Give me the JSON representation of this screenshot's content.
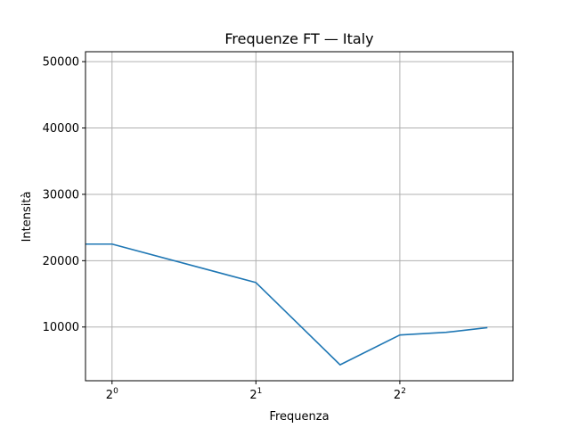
{
  "chart_data": {
    "type": "line",
    "title": "Frequenze FT — Italy",
    "xlabel": "Frequenza",
    "ylabel": "Intensità",
    "x_scale": "log2",
    "xlim": [
      0.88,
      6.9
    ],
    "ylim": [
      1900,
      51500
    ],
    "x_ticks": [
      {
        "value": 1,
        "label": "2",
        "exp": "0"
      },
      {
        "value": 2,
        "label": "2",
        "exp": "1"
      },
      {
        "value": 4,
        "label": "2",
        "exp": "2"
      }
    ],
    "y_ticks": [
      10000,
      20000,
      30000,
      40000,
      50000
    ],
    "grid": true,
    "series": [
      {
        "color": "#1f77b4",
        "x": [
          0.88,
          1,
          2,
          3,
          4,
          5,
          6.1
        ],
        "y": [
          22500,
          22500,
          16700,
          4300,
          8800,
          9200,
          9900
        ]
      }
    ]
  }
}
